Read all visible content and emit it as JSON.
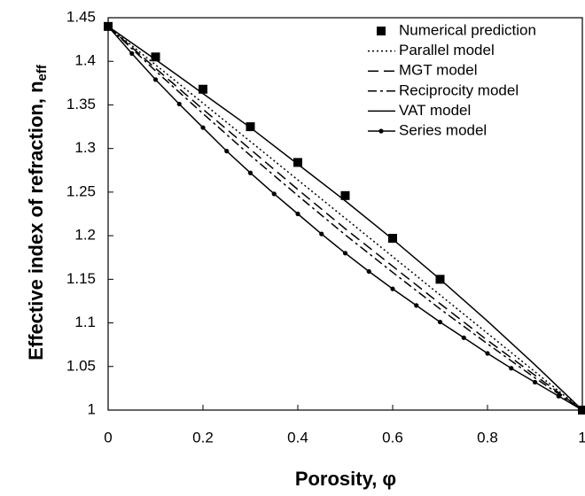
{
  "chart_data": {
    "type": "line",
    "xlabel": "Porosity, φ",
    "ylabel": "Effective index of refraction, n",
    "ylabel_sub": "eff",
    "xlim": [
      0,
      1
    ],
    "xticks": [
      0,
      0.2,
      0.4,
      0.6,
      0.8,
      1
    ],
    "ylim": [
      1,
      1.45
    ],
    "yticks": [
      1,
      1.05,
      1.1,
      1.15,
      1.2,
      1.25,
      1.3,
      1.35,
      1.4,
      1.45
    ],
    "legend": "top-right",
    "series": [
      {
        "name": "Numerical prediction",
        "color": "#000000",
        "line_style": "none",
        "marker": "square",
        "x": [
          0,
          0.1,
          0.2,
          0.3,
          0.4,
          0.5,
          0.6,
          0.7,
          1
        ],
        "values": [
          1.44,
          1.405,
          1.368,
          1.325,
          1.284,
          1.246,
          1.197,
          1.15,
          1.0
        ]
      },
      {
        "name": "Parallel model",
        "color": "#000000",
        "line_style": "dotted",
        "marker": "none",
        "x": [
          0,
          0.1,
          0.2,
          0.3,
          0.4,
          0.5,
          0.6,
          0.7,
          0.8,
          0.9,
          1
        ],
        "values": [
          1.44,
          1.396,
          1.352,
          1.308,
          1.264,
          1.22,
          1.176,
          1.132,
          1.088,
          1.044,
          1.0
        ]
      },
      {
        "name": "MGT model",
        "color": "#000000",
        "line_style": "dashed",
        "marker": "none",
        "x": [
          0,
          0.1,
          0.2,
          0.3,
          0.4,
          0.5,
          0.6,
          0.7,
          0.8,
          0.9,
          1
        ],
        "values": [
          1.44,
          1.392,
          1.345,
          1.299,
          1.253,
          1.208,
          1.165,
          1.122,
          1.08,
          1.04,
          1.0
        ]
      },
      {
        "name": "Reciprocity model",
        "color": "#000000",
        "line_style": "dashdot",
        "marker": "none",
        "x": [
          0,
          0.1,
          0.2,
          0.3,
          0.4,
          0.5,
          0.6,
          0.7,
          0.8,
          0.9,
          1
        ],
        "values": [
          1.44,
          1.389,
          1.34,
          1.292,
          1.246,
          1.201,
          1.158,
          1.116,
          1.076,
          1.037,
          1.0
        ]
      },
      {
        "name": "VAT model",
        "color": "#000000",
        "line_style": "solid",
        "marker": "none",
        "x": [
          0,
          0.1,
          0.2,
          0.3,
          0.4,
          0.5,
          0.6,
          0.7,
          0.8,
          0.9,
          1
        ],
        "values": [
          1.44,
          1.402,
          1.363,
          1.324,
          1.282,
          1.24,
          1.196,
          1.15,
          1.102,
          1.052,
          1.0
        ]
      },
      {
        "name": "Series model",
        "color": "#000000",
        "line_style": "solid",
        "marker": "dot",
        "x": [
          0,
          0.05,
          0.1,
          0.15,
          0.2,
          0.25,
          0.3,
          0.35,
          0.4,
          0.45,
          0.5,
          0.55,
          0.6,
          0.65,
          0.7,
          0.75,
          0.8,
          0.85,
          0.9,
          0.95,
          1
        ],
        "values": [
          1.44,
          1.409,
          1.379,
          1.351,
          1.324,
          1.297,
          1.272,
          1.248,
          1.225,
          1.202,
          1.18,
          1.159,
          1.139,
          1.12,
          1.101,
          1.083,
          1.065,
          1.048,
          1.032,
          1.016,
          1.0
        ]
      }
    ]
  }
}
